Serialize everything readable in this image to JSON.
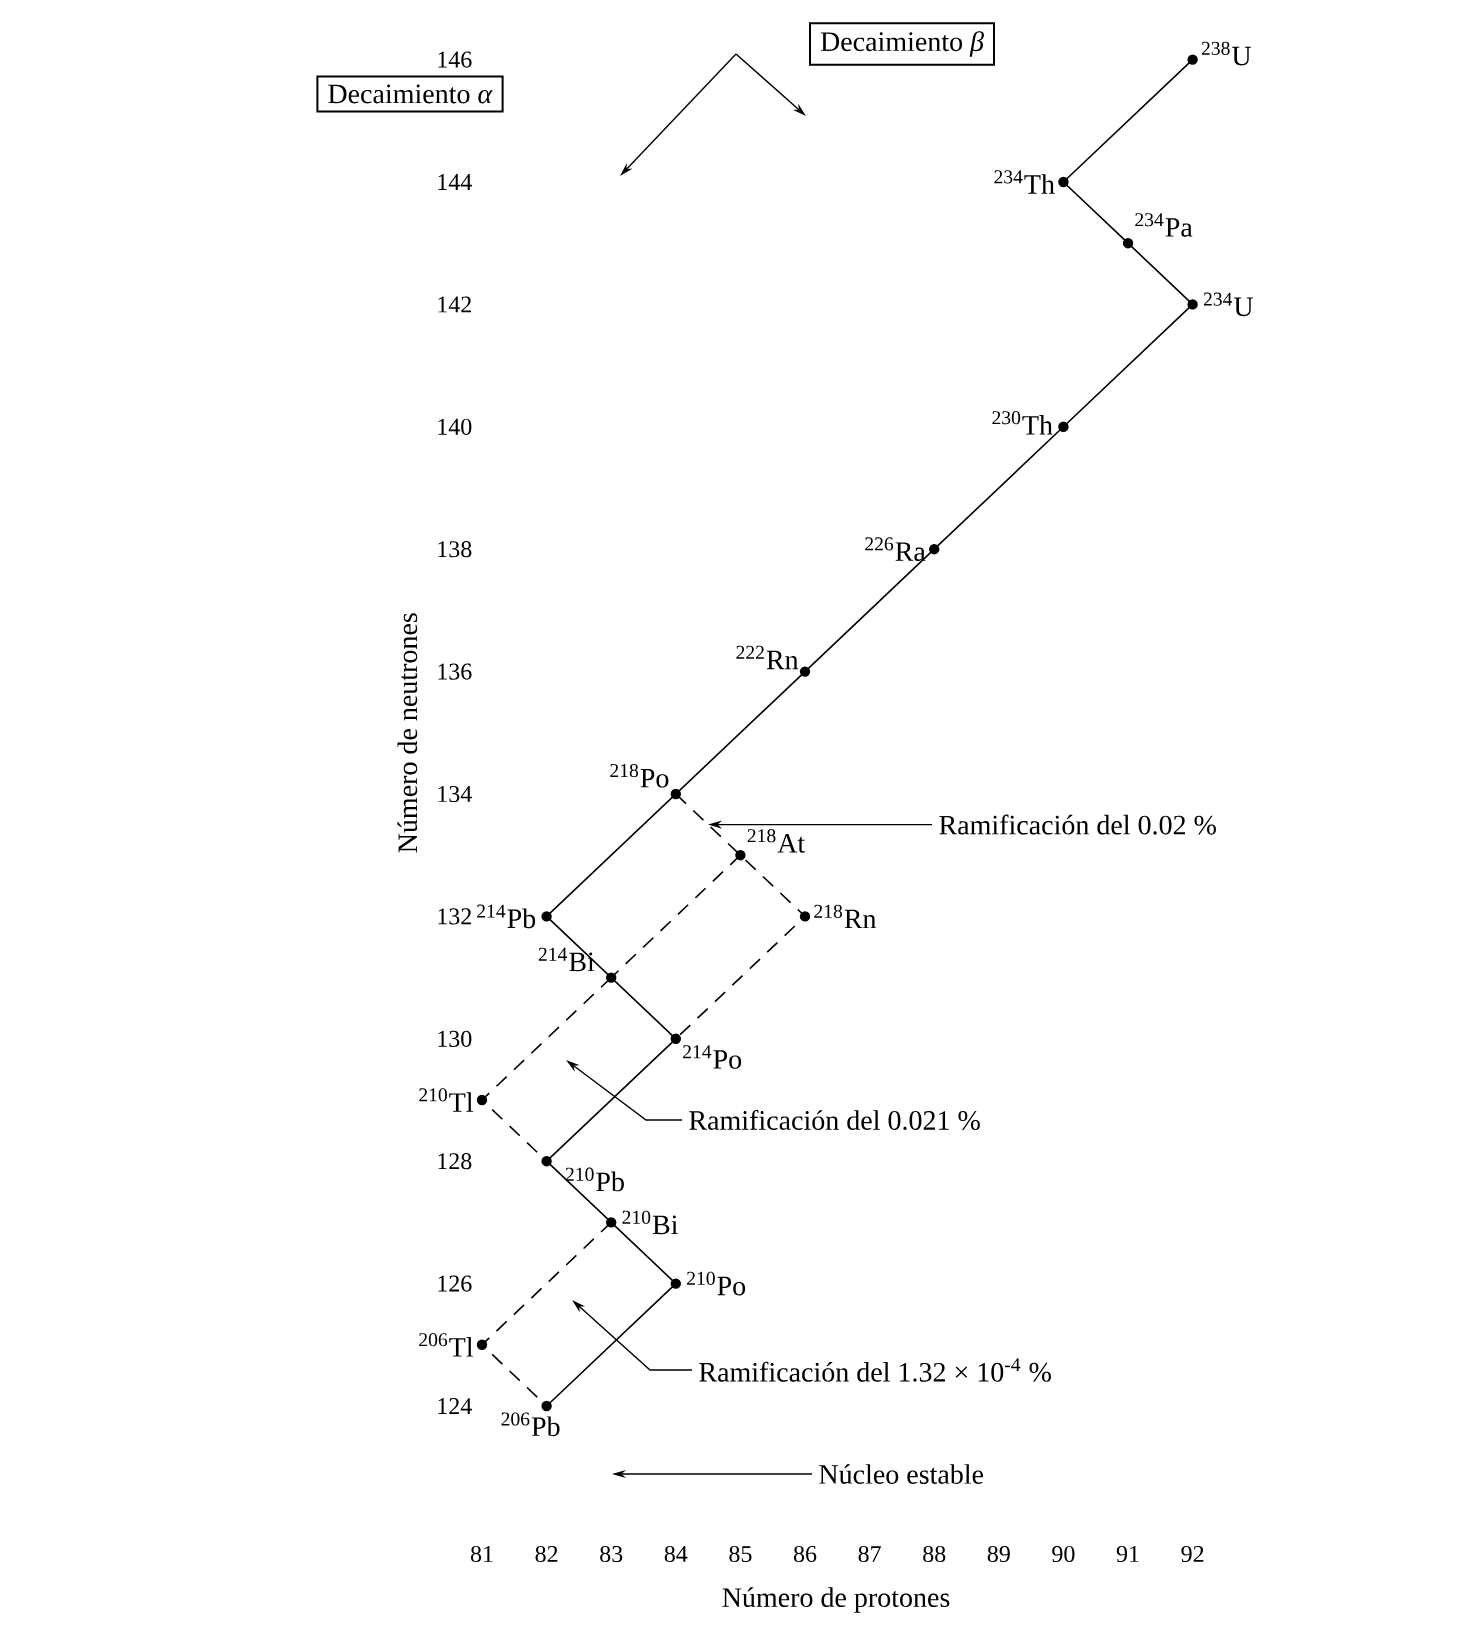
{
  "chart_data": {
    "type": "line",
    "xlabel": "Número de protones",
    "ylabel": "Número de neutrones",
    "xlim": [
      81,
      92
    ],
    "ylim": [
      124,
      146
    ],
    "xticks": [
      81,
      82,
      83,
      84,
      85,
      86,
      87,
      88,
      89,
      90,
      91,
      92
    ],
    "yticks": [
      124,
      126,
      128,
      130,
      132,
      134,
      136,
      138,
      140,
      142,
      144,
      146
    ],
    "series": [
      {
        "type": "line",
        "line_style": "solid",
        "marker": "none",
        "color": "#000000",
        "x": [
          92,
          90,
          91,
          92,
          90,
          88,
          86,
          84,
          82,
          83,
          84,
          82,
          83,
          84,
          82
        ],
        "values": [
          146,
          144,
          143,
          142,
          140,
          138,
          136,
          134,
          132,
          131,
          130,
          128,
          127,
          126,
          124
        ]
      },
      {
        "type": "line",
        "line_style": "dashed",
        "marker": "none",
        "color": "#000000",
        "x": [
          84,
          85,
          86,
          84
        ],
        "values": [
          134,
          133,
          132,
          130
        ]
      },
      {
        "type": "line",
        "line_style": "dashed",
        "marker": "none",
        "color": "#000000",
        "x": [
          85,
          83
        ],
        "values": [
          133,
          131
        ]
      },
      {
        "type": "line",
        "line_style": "dashed",
        "marker": "none",
        "color": "#000000",
        "x": [
          83,
          81,
          82
        ],
        "values": [
          131,
          129,
          128
        ]
      },
      {
        "type": "line",
        "line_style": "dashed",
        "marker": "none",
        "color": "#000000",
        "x": [
          83,
          81,
          82
        ],
        "values": [
          127,
          125,
          124
        ]
      },
      {
        "type": "scatter",
        "marker": "circle",
        "color": "#000000",
        "x": [
          92,
          90,
          91,
          92,
          90,
          88,
          86,
          84,
          85,
          82,
          86,
          83,
          84,
          81,
          82,
          83,
          84,
          81,
          82
        ],
        "values": [
          146,
          144,
          143,
          142,
          140,
          138,
          136,
          134,
          133,
          132,
          132,
          131,
          130,
          129,
          128,
          127,
          126,
          125,
          124
        ]
      }
    ],
    "annotations": [
      {
        "text": "$^{238}$U",
        "x": 92,
        "y": 146
      },
      {
        "text": "$^{234}$Th",
        "x": 90,
        "y": 144
      },
      {
        "text": "$^{234}$Pa",
        "x": 91,
        "y": 143
      },
      {
        "text": "$^{234}$U",
        "x": 92,
        "y": 142
      },
      {
        "text": "$^{230}$Th",
        "x": 90,
        "y": 140
      },
      {
        "text": "$^{226}$Ra",
        "x": 88,
        "y": 138
      },
      {
        "text": "$^{222}$Rn",
        "x": 86,
        "y": 136
      },
      {
        "text": "$^{218}$Po",
        "x": 84,
        "y": 134
      },
      {
        "text": "$^{218}$At",
        "x": 85,
        "y": 133
      },
      {
        "text": "$^{214}$Pb",
        "x": 82,
        "y": 132
      },
      {
        "text": "$^{218}$Rn",
        "x": 86,
        "y": 132
      },
      {
        "text": "$^{214}$Bi",
        "x": 83,
        "y": 131
      },
      {
        "text": "$^{214}$Po",
        "x": 84,
        "y": 130
      },
      {
        "text": "$^{210}$Tl",
        "x": 81,
        "y": 129
      },
      {
        "text": "$^{210}$Pb",
        "x": 82,
        "y": 128
      },
      {
        "text": "$^{210}$Bi",
        "x": 83,
        "y": 127
      },
      {
        "text": "$^{210}$Po",
        "x": 84,
        "y": 126
      },
      {
        "text": "$^{206}$Tl",
        "x": 81,
        "y": 125
      },
      {
        "text": "$^{206}$Pb",
        "x": 82,
        "y": 124
      },
      {
        "text": "Ramificación del 0.02 %",
        "x": 84.5,
        "y": 133.5
      },
      "Decaimiento *α*",
      "Decaimiento *β*",
      "Ramificación del 0.021 %",
      "Ramificación del 1.32 × 10$^{-4}$ %",
      "Núcleo estable"
    ]
  }
}
